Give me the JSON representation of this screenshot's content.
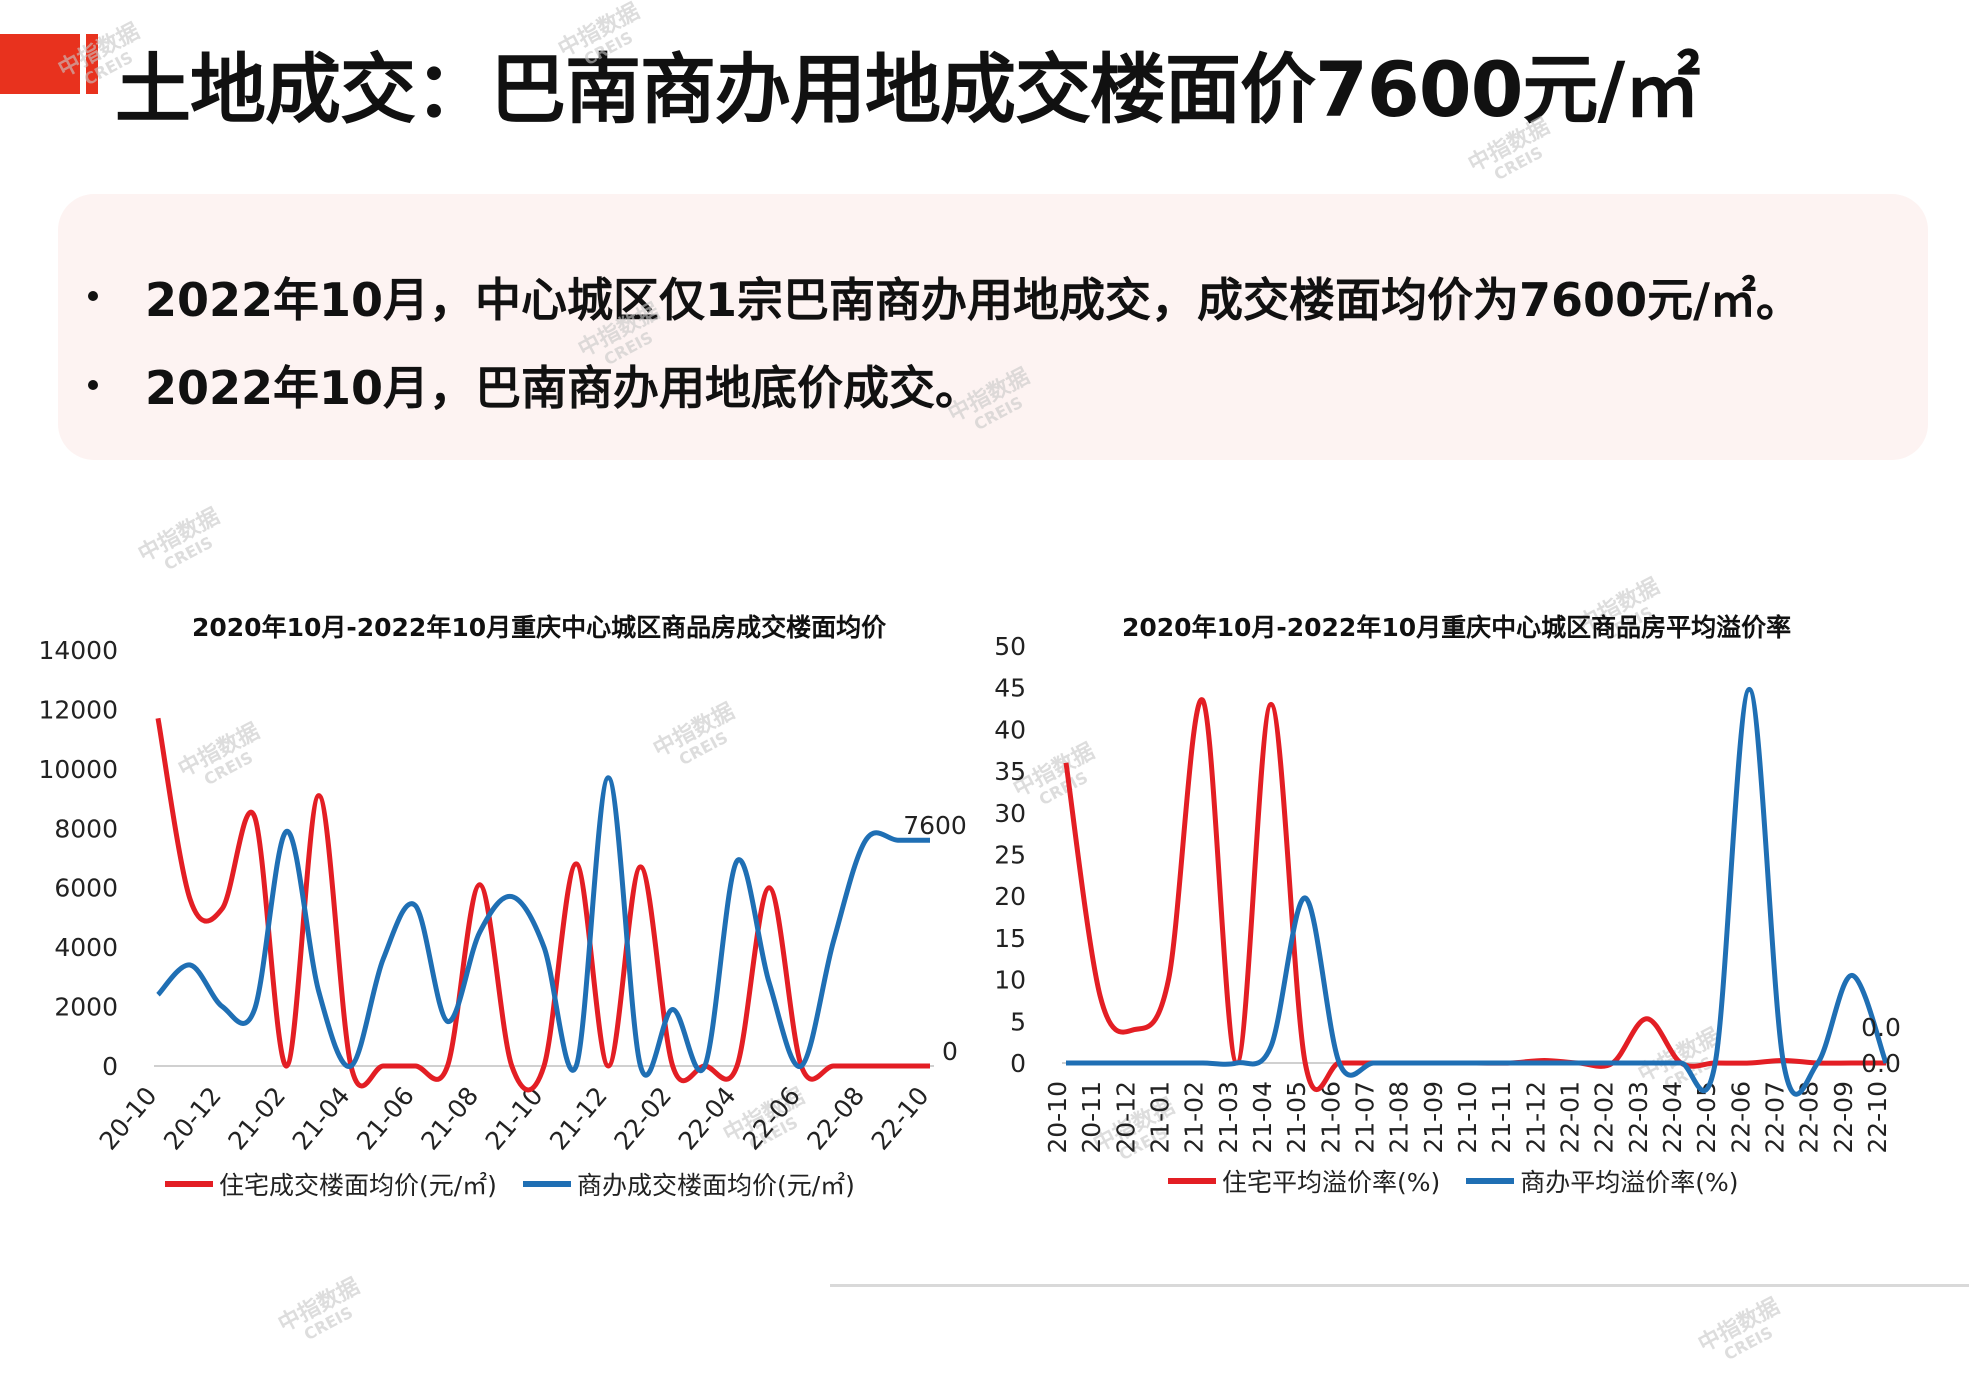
{
  "title": "土地成交：巴南商办用地成交楼面价7600元/㎡",
  "bullets": [
    "2022年10月，中心城区仅1宗巴南商办用地成交，成交楼面均价为7600元/㎡。",
    "2022年10月，巴南商办用地底价成交。"
  ],
  "watermark": {
    "cn": "中指数据",
    "en": "CREIS"
  },
  "colors": {
    "accent": "#e8321e",
    "residential": "#e31e24",
    "commercial": "#1f6fb4",
    "box": "#fdf3f2"
  },
  "chart_data": [
    {
      "type": "line",
      "title": "2020年10月-2022年10月重庆中心城区商品房成交楼面均价",
      "x": [
        "20-10",
        "20-11",
        "20-12",
        "21-01",
        "21-02",
        "21-03",
        "21-04",
        "21-05",
        "21-06",
        "21-07",
        "21-08",
        "21-09",
        "21-10",
        "21-11",
        "21-12",
        "22-01",
        "22-02",
        "22-03",
        "22-04",
        "22-05",
        "22-06",
        "22-07",
        "22-08",
        "22-09",
        "22-10"
      ],
      "x_tick_labels": [
        "20-10",
        "20-12",
        "21-02",
        "21-04",
        "21-06",
        "21-08",
        "21-10",
        "21-12",
        "22-02",
        "22-04",
        "22-06",
        "22-08",
        "22-10"
      ],
      "ylim": [
        0,
        14000
      ],
      "y_ticks": [
        "0",
        "2000",
        "4000",
        "6000",
        "8000",
        "10000",
        "12000",
        "14000"
      ],
      "series": [
        {
          "name": "住宅成交楼面均价(元/㎡)",
          "color": "#e31e24",
          "values": [
            11700,
            5600,
            5300,
            8400,
            0,
            9100,
            0,
            0,
            0,
            0,
            6100,
            0,
            0,
            6800,
            0,
            6700,
            0,
            0,
            0,
            6000,
            0,
            0,
            0,
            0,
            0
          ]
        },
        {
          "name": "商办成交楼面均价(元/㎡)",
          "color": "#1f6fb4",
          "values": [
            2400,
            3400,
            2000,
            1900,
            7900,
            2500,
            0,
            3600,
            5400,
            1500,
            4500,
            5700,
            4000,
            0,
            9700,
            0,
            1900,
            0,
            6900,
            2800,
            0,
            4200,
            7600,
            7600,
            7600
          ]
        }
      ],
      "data_labels": [
        {
          "text": "7600"
        },
        {
          "text": "0"
        }
      ],
      "grid": false,
      "legend": "bottom"
    },
    {
      "type": "line",
      "title": "2020年10月-2022年10月重庆中心城区商品房平均溢价率",
      "x": [
        "20-10",
        "20-11",
        "20-12",
        "21-01",
        "21-02",
        "21-03",
        "21-04",
        "21-05",
        "21-06",
        "21-07",
        "21-08",
        "21-09",
        "21-10",
        "21-11",
        "21-12",
        "22-01",
        "22-02",
        "22-03",
        "22-04",
        "22-05",
        "22-06",
        "22-07",
        "22-08",
        "22-09",
        "22-10"
      ],
      "x_tick_labels": [
        "20-10",
        "20-11",
        "20-12",
        "21-01",
        "21-02",
        "21-03",
        "21-04",
        "21-05",
        "21-06",
        "21-07",
        "21-08",
        "21-09",
        "21-10",
        "21-11",
        "21-12",
        "22-01",
        "22-02",
        "22-03",
        "22-04",
        "22-05",
        "22-06",
        "22-07",
        "22-08",
        "22-09",
        "22-10"
      ],
      "ylim": [
        0,
        50
      ],
      "y_ticks": [
        "0",
        "5",
        "10",
        "15",
        "20",
        "25",
        "30",
        "35",
        "40",
        "45",
        "50"
      ],
      "series": [
        {
          "name": "住宅平均溢价率(%)",
          "color": "#e31e24",
          "values": [
            36,
            8,
            4,
            10,
            43.5,
            0,
            43,
            0,
            0,
            0,
            0,
            0,
            0,
            0,
            0.3,
            0,
            0,
            5.3,
            0,
            0,
            0,
            0.3,
            0,
            0,
            0
          ]
        },
        {
          "name": "商办平均溢价率(%)",
          "color": "#1f6fb4",
          "values": [
            0,
            0,
            0,
            0,
            0,
            0,
            2,
            19.8,
            0,
            0,
            0,
            0,
            0,
            0,
            0,
            0,
            0,
            0,
            0,
            0,
            44.8,
            0,
            0,
            10.5,
            0
          ]
        }
      ],
      "data_labels": [
        {
          "text": "0.0"
        },
        {
          "text": "0.0"
        }
      ],
      "grid": false,
      "legend": "bottom"
    }
  ]
}
